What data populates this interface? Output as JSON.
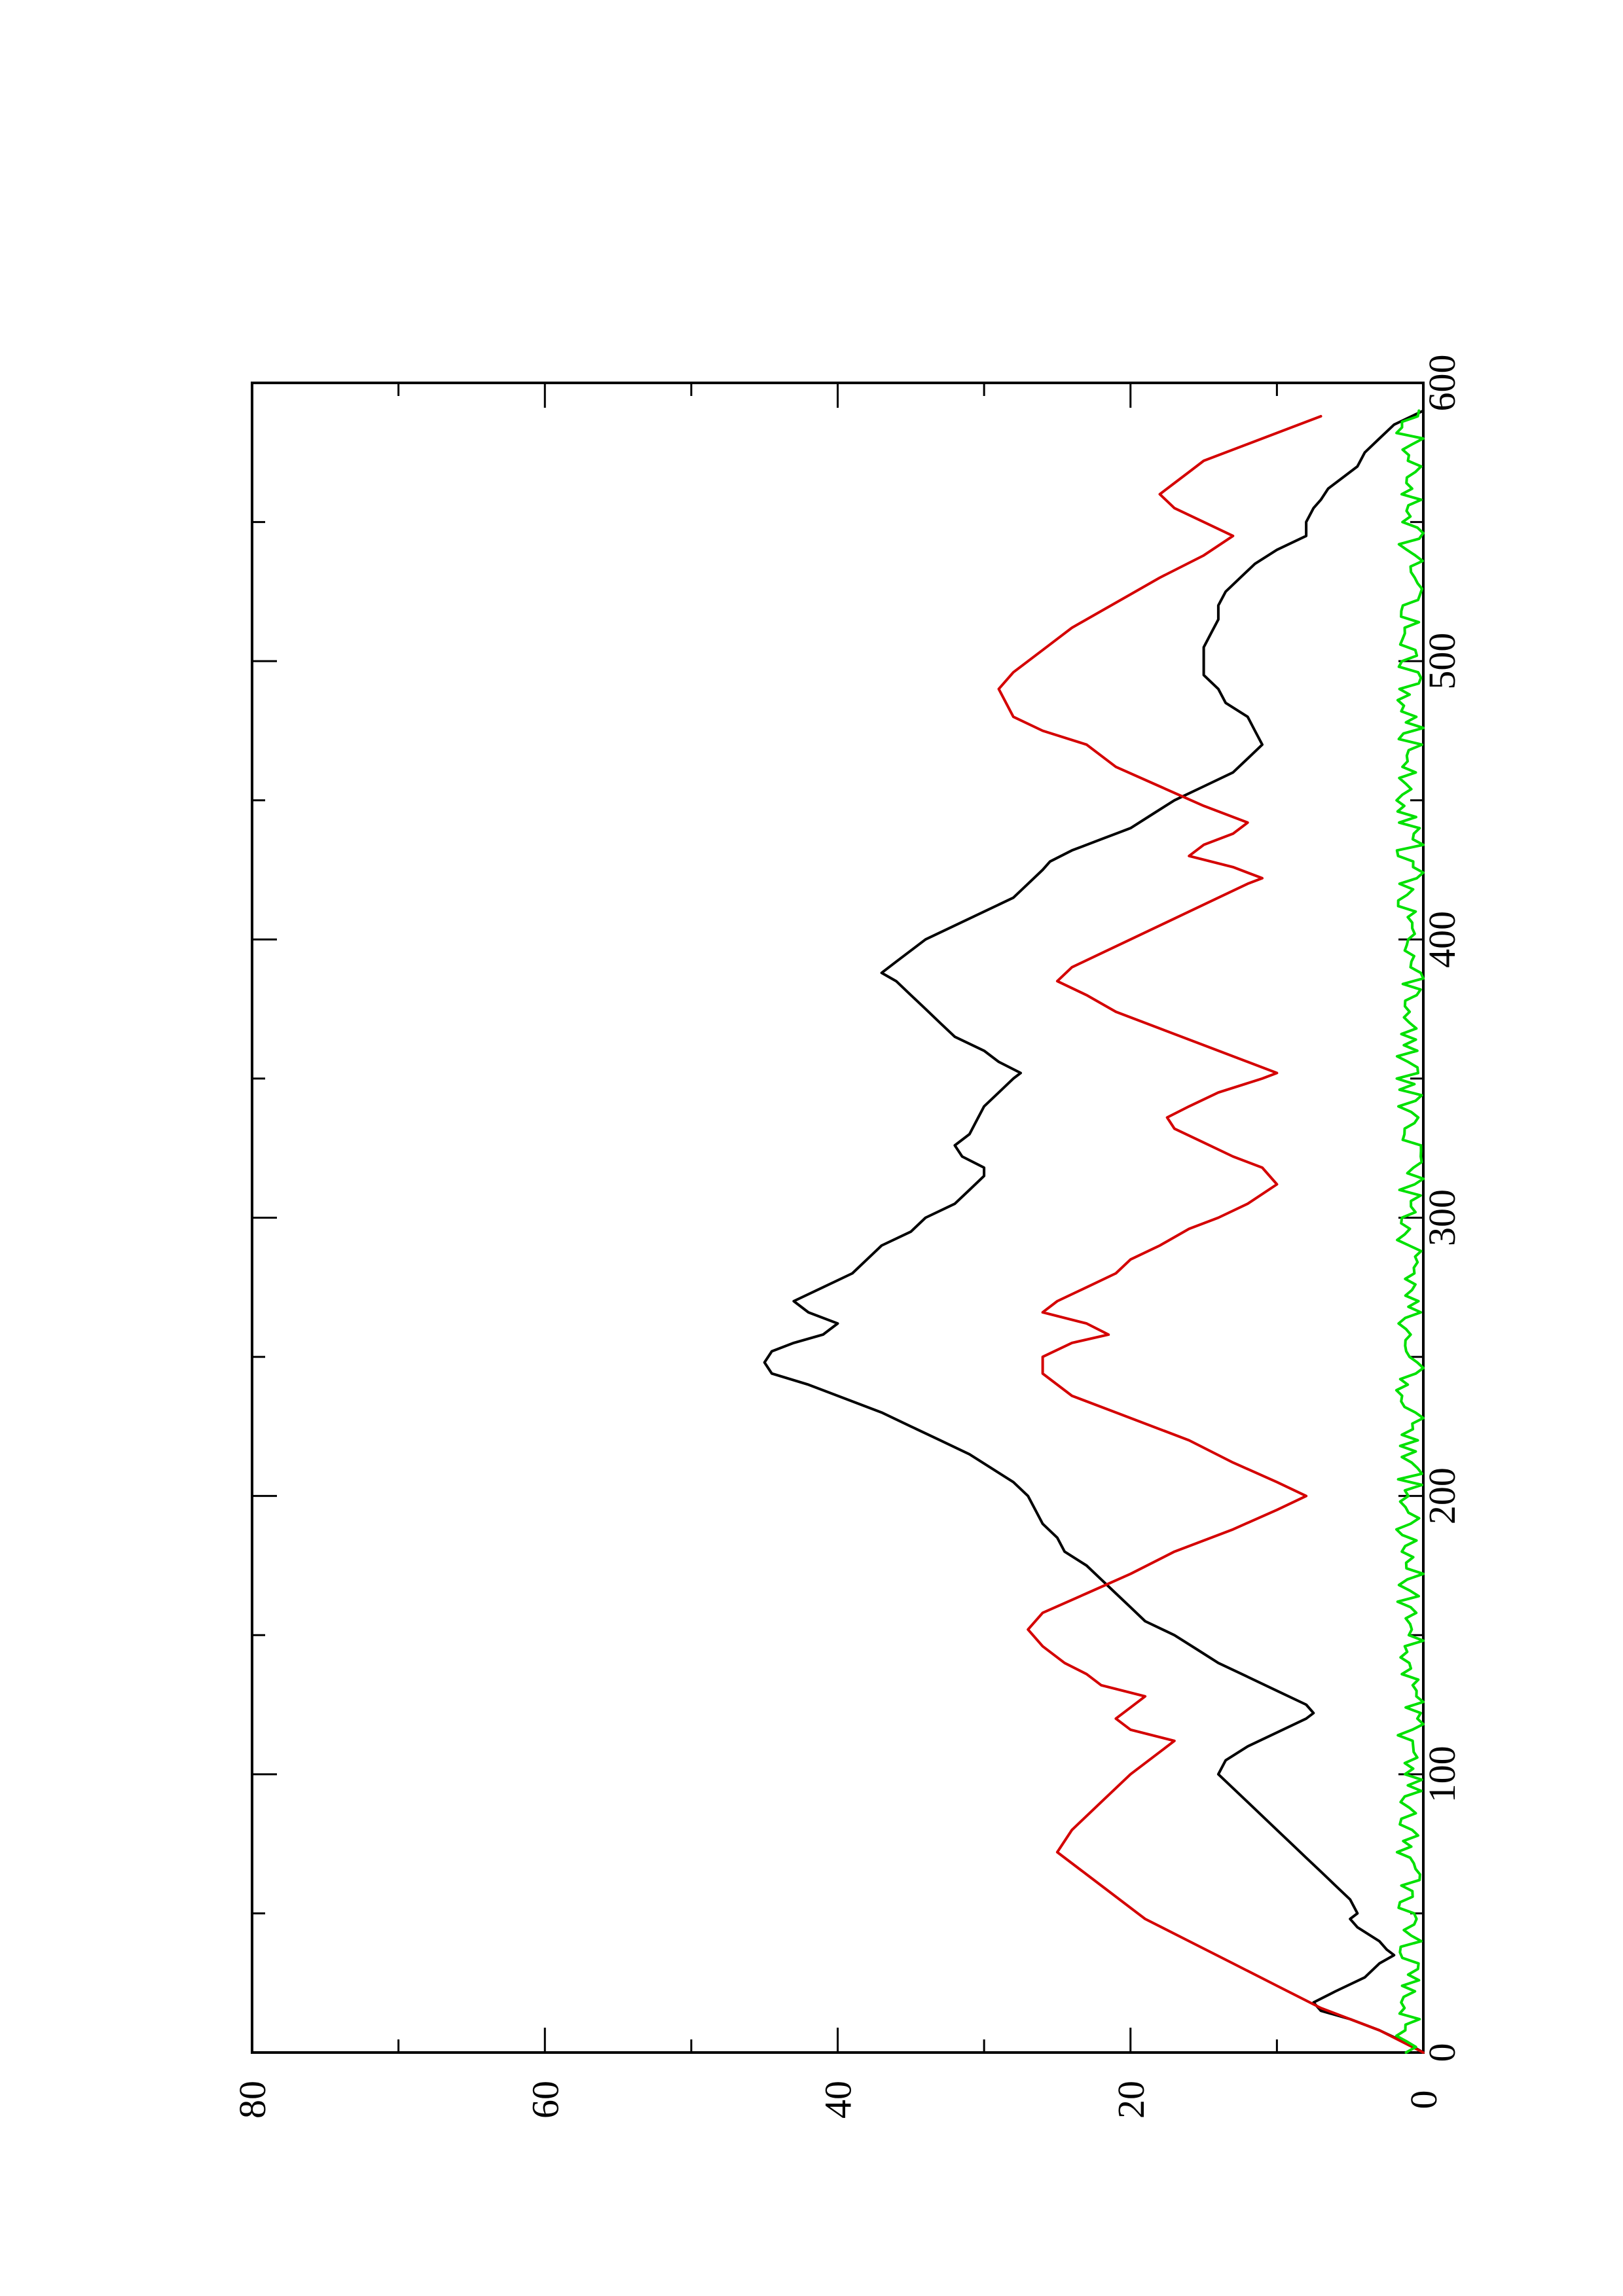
{
  "chart_data": {
    "type": "line",
    "orientation": "rotated-90-ccw",
    "title": "",
    "xlabel": "",
    "ylabel": "",
    "xlim": [
      0,
      600
    ],
    "ylim": [
      0,
      80
    ],
    "x_ticks": [
      0,
      100,
      200,
      300,
      400,
      500,
      600
    ],
    "x_minor_ticks": [
      50,
      150,
      250,
      350,
      450,
      550
    ],
    "y_ticks": [
      0,
      20,
      40,
      60,
      80
    ],
    "y_minor_ticks": [
      10,
      30,
      50,
      70
    ],
    "x_tick_labels": [
      "0",
      "100",
      "200",
      "300",
      "400",
      "500",
      "600"
    ],
    "y_tick_labels": [
      "0",
      "20",
      "40",
      "60",
      "80"
    ],
    "grid": false,
    "legend": "none",
    "series": [
      {
        "color": "#000000",
        "points": [
          [
            0,
            0
          ],
          [
            3,
            1
          ],
          [
            8,
            3
          ],
          [
            12,
            5
          ],
          [
            15,
            7
          ],
          [
            18,
            7.5
          ],
          [
            22,
            6
          ],
          [
            27,
            4
          ],
          [
            32,
            3
          ],
          [
            35,
            2
          ],
          [
            37,
            2.5
          ],
          [
            40,
            3
          ],
          [
            45,
            4.5
          ],
          [
            48,
            5
          ],
          [
            50,
            4.5
          ],
          [
            55,
            5
          ],
          [
            60,
            6
          ],
          [
            65,
            7
          ],
          [
            70,
            8
          ],
          [
            75,
            9
          ],
          [
            80,
            10
          ],
          [
            85,
            11
          ],
          [
            90,
            12
          ],
          [
            95,
            13
          ],
          [
            100,
            14
          ],
          [
            105,
            13.5
          ],
          [
            110,
            12
          ],
          [
            115,
            10
          ],
          [
            120,
            8
          ],
          [
            122,
            7.5
          ],
          [
            125,
            8
          ],
          [
            130,
            10
          ],
          [
            135,
            12
          ],
          [
            140,
            14
          ],
          [
            145,
            15.5
          ],
          [
            150,
            17
          ],
          [
            155,
            19
          ],
          [
            160,
            20
          ],
          [
            165,
            21
          ],
          [
            170,
            22
          ],
          [
            175,
            23
          ],
          [
            180,
            24.5
          ],
          [
            185,
            25
          ],
          [
            190,
            26
          ],
          [
            195,
            26.5
          ],
          [
            200,
            27
          ],
          [
            205,
            28
          ],
          [
            210,
            29.5
          ],
          [
            215,
            31
          ],
          [
            220,
            33
          ],
          [
            225,
            35
          ],
          [
            230,
            37
          ],
          [
            235,
            39.5
          ],
          [
            240,
            42
          ],
          [
            244,
            44.5
          ],
          [
            248,
            45
          ],
          [
            252,
            44.5
          ],
          [
            255,
            43
          ],
          [
            258,
            41
          ],
          [
            262,
            40
          ],
          [
            266,
            42
          ],
          [
            270,
            43
          ],
          [
            275,
            41
          ],
          [
            280,
            39
          ],
          [
            285,
            38
          ],
          [
            290,
            37
          ],
          [
            295,
            35
          ],
          [
            300,
            34
          ],
          [
            305,
            32
          ],
          [
            310,
            31
          ],
          [
            315,
            30
          ],
          [
            318,
            30
          ],
          [
            322,
            31.5
          ],
          [
            326,
            32
          ],
          [
            330,
            31
          ],
          [
            335,
            30.5
          ],
          [
            340,
            30
          ],
          [
            345,
            29
          ],
          [
            350,
            28
          ],
          [
            352,
            27.5
          ],
          [
            356,
            29
          ],
          [
            360,
            30
          ],
          [
            365,
            32
          ],
          [
            370,
            33
          ],
          [
            375,
            34
          ],
          [
            380,
            35
          ],
          [
            385,
            36
          ],
          [
            388,
            37
          ],
          [
            392,
            36
          ],
          [
            396,
            35
          ],
          [
            400,
            34
          ],
          [
            405,
            32
          ],
          [
            410,
            30
          ],
          [
            415,
            28
          ],
          [
            420,
            27
          ],
          [
            425,
            26
          ],
          [
            428,
            25.5
          ],
          [
            432,
            24
          ],
          [
            436,
            22
          ],
          [
            440,
            20
          ],
          [
            445,
            18.5
          ],
          [
            450,
            17
          ],
          [
            455,
            15
          ],
          [
            460,
            13
          ],
          [
            465,
            12
          ],
          [
            470,
            11
          ],
          [
            475,
            11.5
          ],
          [
            480,
            12
          ],
          [
            485,
            13.5
          ],
          [
            490,
            14
          ],
          [
            495,
            15
          ],
          [
            500,
            15
          ],
          [
            505,
            15
          ],
          [
            510,
            14.5
          ],
          [
            515,
            14
          ],
          [
            520,
            14
          ],
          [
            525,
            13.5
          ],
          [
            530,
            12.5
          ],
          [
            535,
            11.5
          ],
          [
            540,
            10
          ],
          [
            545,
            8
          ],
          [
            550,
            8
          ],
          [
            555,
            7.5
          ],
          [
            558,
            7
          ],
          [
            562,
            6.5
          ],
          [
            566,
            5.5
          ],
          [
            570,
            4.5
          ],
          [
            575,
            4
          ],
          [
            580,
            3
          ],
          [
            585,
            2
          ],
          [
            590,
            0
          ]
        ]
      },
      {
        "color": "#d40000",
        "points": [
          [
            0,
            0
          ],
          [
            8,
            3
          ],
          [
            16,
            7
          ],
          [
            24,
            10
          ],
          [
            32,
            13
          ],
          [
            40,
            16
          ],
          [
            48,
            19
          ],
          [
            56,
            21
          ],
          [
            64,
            23
          ],
          [
            72,
            25
          ],
          [
            80,
            24
          ],
          [
            90,
            22
          ],
          [
            100,
            20
          ],
          [
            108,
            18
          ],
          [
            112,
            17
          ],
          [
            116,
            20
          ],
          [
            120,
            21
          ],
          [
            124,
            20
          ],
          [
            128,
            19
          ],
          [
            132,
            22
          ],
          [
            136,
            23
          ],
          [
            140,
            24.5
          ],
          [
            146,
            26
          ],
          [
            152,
            27
          ],
          [
            158,
            26
          ],
          [
            165,
            23
          ],
          [
            172,
            20
          ],
          [
            180,
            17
          ],
          [
            188,
            13
          ],
          [
            195,
            10
          ],
          [
            200,
            8
          ],
          [
            205,
            10
          ],
          [
            212,
            13
          ],
          [
            220,
            16
          ],
          [
            228,
            20
          ],
          [
            236,
            24
          ],
          [
            244,
            26
          ],
          [
            250,
            26
          ],
          [
            255,
            24
          ],
          [
            258,
            21.5
          ],
          [
            262,
            23
          ],
          [
            266,
            26
          ],
          [
            270,
            25
          ],
          [
            275,
            23
          ],
          [
            280,
            21
          ],
          [
            285,
            20
          ],
          [
            290,
            18
          ],
          [
            296,
            16
          ],
          [
            300,
            14
          ],
          [
            305,
            12
          ],
          [
            312,
            10
          ],
          [
            318,
            11
          ],
          [
            322,
            13
          ],
          [
            327,
            15
          ],
          [
            332,
            17
          ],
          [
            336,
            17.5
          ],
          [
            340,
            16
          ],
          [
            345,
            14
          ],
          [
            350,
            11
          ],
          [
            352,
            10
          ],
          [
            356,
            12
          ],
          [
            362,
            15
          ],
          [
            368,
            18
          ],
          [
            374,
            21
          ],
          [
            380,
            23
          ],
          [
            385,
            25
          ],
          [
            390,
            24
          ],
          [
            395,
            22
          ],
          [
            400,
            20
          ],
          [
            405,
            18
          ],
          [
            410,
            16
          ],
          [
            415,
            14
          ],
          [
            420,
            12
          ],
          [
            422,
            11
          ],
          [
            426,
            13
          ],
          [
            430,
            16
          ],
          [
            434,
            15
          ],
          [
            438,
            13
          ],
          [
            442,
            12
          ],
          [
            448,
            15
          ],
          [
            455,
            18
          ],
          [
            462,
            21
          ],
          [
            470,
            23
          ],
          [
            475,
            26
          ],
          [
            480,
            28
          ],
          [
            490,
            29
          ],
          [
            496,
            28
          ],
          [
            500,
            27
          ],
          [
            504,
            26
          ],
          [
            508,
            25
          ],
          [
            512,
            24
          ],
          [
            518,
            22
          ],
          [
            524,
            20
          ],
          [
            530,
            18
          ],
          [
            538,
            15
          ],
          [
            545,
            13
          ],
          [
            550,
            15
          ],
          [
            555,
            17
          ],
          [
            560,
            18
          ],
          [
            564,
            17
          ],
          [
            568,
            16
          ],
          [
            572,
            15
          ],
          [
            578,
            12
          ],
          [
            584,
            9
          ],
          [
            588,
            7
          ]
        ]
      },
      {
        "color": "#00e000",
        "noise_amplitude": 1.2,
        "baseline": 0.5,
        "x_range": [
          0,
          590
        ]
      }
    ]
  }
}
